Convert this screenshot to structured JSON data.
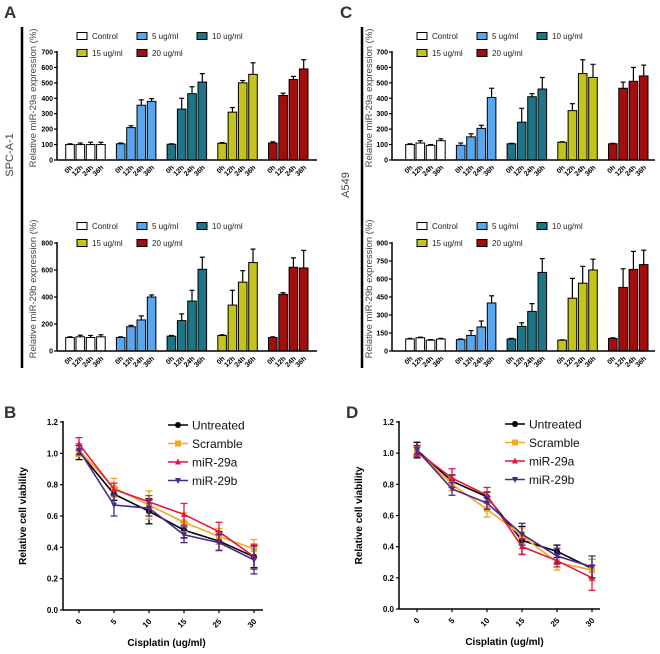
{
  "panel_letters": {
    "a": "A",
    "b": "B",
    "c": "C",
    "d": "D"
  },
  "side_labels": {
    "left": "SPC-A-1",
    "right": "A549"
  },
  "colors": {
    "Control": "#ffffff",
    "5 ug/ml": "#5aa6ee",
    "10 ug/ml": "#1d7588",
    "15 ug/ml": "#c4c41c",
    "20 ug/ml": "#a40d0d",
    "Untreated": "#000000",
    "Scramble": "#f5a623",
    "miR-29a": "#e3173e",
    "miR-29b": "#4b2a87"
  },
  "chart_data": [
    {
      "panel": "A",
      "type": "bar",
      "ylabel": "Relative miR-29a expression (%)",
      "categories": [
        "0h",
        "12h",
        "24h",
        "36h"
      ],
      "ylim": [
        0,
        700
      ],
      "yticks": [
        0,
        100,
        200,
        300,
        400,
        500,
        600,
        700
      ],
      "legend": "top",
      "series": [
        {
          "name": "Control",
          "values": [
            100,
            100,
            100,
            100
          ],
          "errors": [
            5,
            10,
            15,
            15
          ]
        },
        {
          "name": "5 ug/ml",
          "values": [
            105,
            210,
            355,
            380
          ],
          "errors": [
            5,
            12,
            35,
            18
          ]
        },
        {
          "name": "10 ug/ml",
          "values": [
            102,
            330,
            430,
            505
          ],
          "errors": [
            3,
            70,
            45,
            55
          ]
        },
        {
          "name": "15 ug/ml",
          "values": [
            108,
            310,
            500,
            555
          ],
          "errors": [
            5,
            30,
            15,
            75
          ]
        },
        {
          "name": "20 ug/ml",
          "values": [
            110,
            418,
            522,
            590
          ],
          "errors": [
            8,
            15,
            20,
            60
          ]
        }
      ]
    },
    {
      "panel": "A",
      "type": "bar",
      "ylabel": "Relative miR-29b expression (%)",
      "categories": [
        "0h",
        "12h",
        "24h",
        "36h"
      ],
      "ylim": [
        0,
        800
      ],
      "yticks": [
        0,
        200,
        400,
        600,
        800
      ],
      "legend": "top",
      "series": [
        {
          "name": "Control",
          "values": [
            100,
            105,
            100,
            105
          ],
          "errors": [
            5,
            12,
            15,
            15
          ]
        },
        {
          "name": "5 ug/ml",
          "values": [
            100,
            180,
            230,
            400
          ],
          "errors": [
            5,
            10,
            30,
            15
          ]
        },
        {
          "name": "10 ug/ml",
          "values": [
            110,
            225,
            370,
            605
          ],
          "errors": [
            5,
            50,
            80,
            90
          ]
        },
        {
          "name": "15 ug/ml",
          "values": [
            115,
            340,
            510,
            655
          ],
          "errors": [
            5,
            110,
            85,
            100
          ]
        },
        {
          "name": "20 ug/ml",
          "values": [
            100,
            420,
            620,
            615
          ],
          "errors": [
            5,
            12,
            70,
            130
          ]
        }
      ]
    },
    {
      "panel": "C",
      "type": "bar",
      "ylabel": "Relative miR-29a expression (%)",
      "categories": [
        "0h",
        "12h",
        "24h",
        "36h"
      ],
      "ylim": [
        0,
        700
      ],
      "yticks": [
        0,
        100,
        200,
        300,
        400,
        500,
        600,
        700
      ],
      "legend": "top",
      "series": [
        {
          "name": "Control",
          "values": [
            100,
            110,
            95,
            125
          ],
          "errors": [
            5,
            15,
            5,
            12
          ]
        },
        {
          "name": "5 ug/ml",
          "values": [
            95,
            150,
            205,
            405
          ],
          "errors": [
            15,
            20,
            20,
            60
          ]
        },
        {
          "name": "10 ug/ml",
          "values": [
            105,
            245,
            410,
            460
          ],
          "errors": [
            3,
            90,
            20,
            75
          ]
        },
        {
          "name": "15 ug/ml",
          "values": [
            115,
            320,
            560,
            535
          ],
          "errors": [
            3,
            45,
            90,
            85
          ]
        },
        {
          "name": "20 ug/ml",
          "values": [
            105,
            465,
            510,
            545
          ],
          "errors": [
            3,
            40,
            90,
            70
          ]
        }
      ]
    },
    {
      "panel": "C",
      "type": "bar",
      "ylabel": "Relative miR-29b expression (%)",
      "categories": [
        "0h",
        "12h",
        "24h",
        "36h"
      ],
      "ylim": [
        0,
        900
      ],
      "yticks": [
        0,
        150,
        300,
        450,
        600,
        750,
        900
      ],
      "legend": "top",
      "series": [
        {
          "name": "Control",
          "values": [
            100,
            110,
            90,
            100
          ],
          "errors": [
            5,
            5,
            5,
            5
          ]
        },
        {
          "name": "5 ug/ml",
          "values": [
            95,
            130,
            200,
            400
          ],
          "errors": [
            5,
            40,
            50,
            60
          ]
        },
        {
          "name": "10 ug/ml",
          "values": [
            100,
            205,
            330,
            655
          ],
          "errors": [
            5,
            30,
            65,
            115
          ]
        },
        {
          "name": "15 ug/ml",
          "values": [
            90,
            440,
            565,
            675
          ],
          "errors": [
            3,
            165,
            140,
            90
          ]
        },
        {
          "name": "20 ug/ml",
          "values": [
            105,
            530,
            680,
            720
          ],
          "errors": [
            5,
            155,
            150,
            120
          ]
        }
      ]
    },
    {
      "panel": "B",
      "type": "line",
      "xlabel": "Cisplatin (ug/ml)",
      "ylabel": "Relative cell viability",
      "categories": [
        "0",
        "5",
        "10",
        "15",
        "25",
        "30"
      ],
      "ylim": [
        0,
        1.2
      ],
      "yticks": [
        "0.0",
        "0.2",
        "0.4",
        "0.6",
        "0.8",
        "1.0",
        "1.2"
      ],
      "legend": "top-right",
      "series": [
        {
          "name": "Untreated",
          "marker": "circle",
          "values": [
            1.01,
            0.74,
            0.63,
            0.51,
            0.44,
            0.34
          ],
          "errors": [
            0.05,
            0.04,
            0.08,
            0.05,
            0.06,
            0.07
          ]
        },
        {
          "name": "Scramble",
          "marker": "square",
          "values": [
            1.02,
            0.78,
            0.67,
            0.56,
            0.47,
            0.39
          ],
          "errors": [
            0.04,
            0.06,
            0.09,
            0.06,
            0.05,
            0.06
          ]
        },
        {
          "name": "miR-29a",
          "marker": "triangle-up",
          "values": [
            1.06,
            0.77,
            0.69,
            0.61,
            0.5,
            0.34
          ],
          "errors": [
            0.04,
            0.04,
            0.04,
            0.07,
            0.06,
            0.08
          ]
        },
        {
          "name": "miR-29b",
          "marker": "triangle-down",
          "values": [
            1.02,
            0.67,
            0.65,
            0.48,
            0.43,
            0.32
          ],
          "errors": [
            0.03,
            0.07,
            0.05,
            0.05,
            0.05,
            0.09
          ]
        }
      ]
    },
    {
      "panel": "D",
      "type": "line",
      "xlabel": "Cisplatin (ug/ml)",
      "ylabel": "Relative cell viability",
      "categories": [
        "0",
        "5",
        "10",
        "15",
        "25",
        "30"
      ],
      "ylim": [
        0,
        1.2
      ],
      "yticks": [
        "0.0",
        "0.2",
        "0.4",
        "0.6",
        "0.8",
        "1.0",
        "1.2"
      ],
      "legend": "top-right",
      "series": [
        {
          "name": "Untreated",
          "marker": "circle",
          "values": [
            1.02,
            0.82,
            0.72,
            0.44,
            0.37,
            0.26
          ],
          "errors": [
            0.05,
            0.04,
            0.03,
            0.09,
            0.04,
            0.06
          ]
        },
        {
          "name": "Scramble",
          "marker": "square",
          "values": [
            1.01,
            0.8,
            0.64,
            0.47,
            0.3,
            0.25
          ],
          "errors": [
            0.03,
            0.04,
            0.05,
            0.05,
            0.05,
            0.07
          ]
        },
        {
          "name": "miR-29a",
          "marker": "triangle-up",
          "values": [
            1.01,
            0.84,
            0.73,
            0.4,
            0.31,
            0.2
          ],
          "errors": [
            0.03,
            0.06,
            0.05,
            0.05,
            0.04,
            0.08
          ]
        },
        {
          "name": "miR-29b",
          "marker": "triangle-down",
          "values": [
            1.02,
            0.77,
            0.68,
            0.48,
            0.34,
            0.27
          ],
          "errors": [
            0.03,
            0.04,
            0.04,
            0.07,
            0.05,
            0.07
          ]
        }
      ]
    }
  ]
}
